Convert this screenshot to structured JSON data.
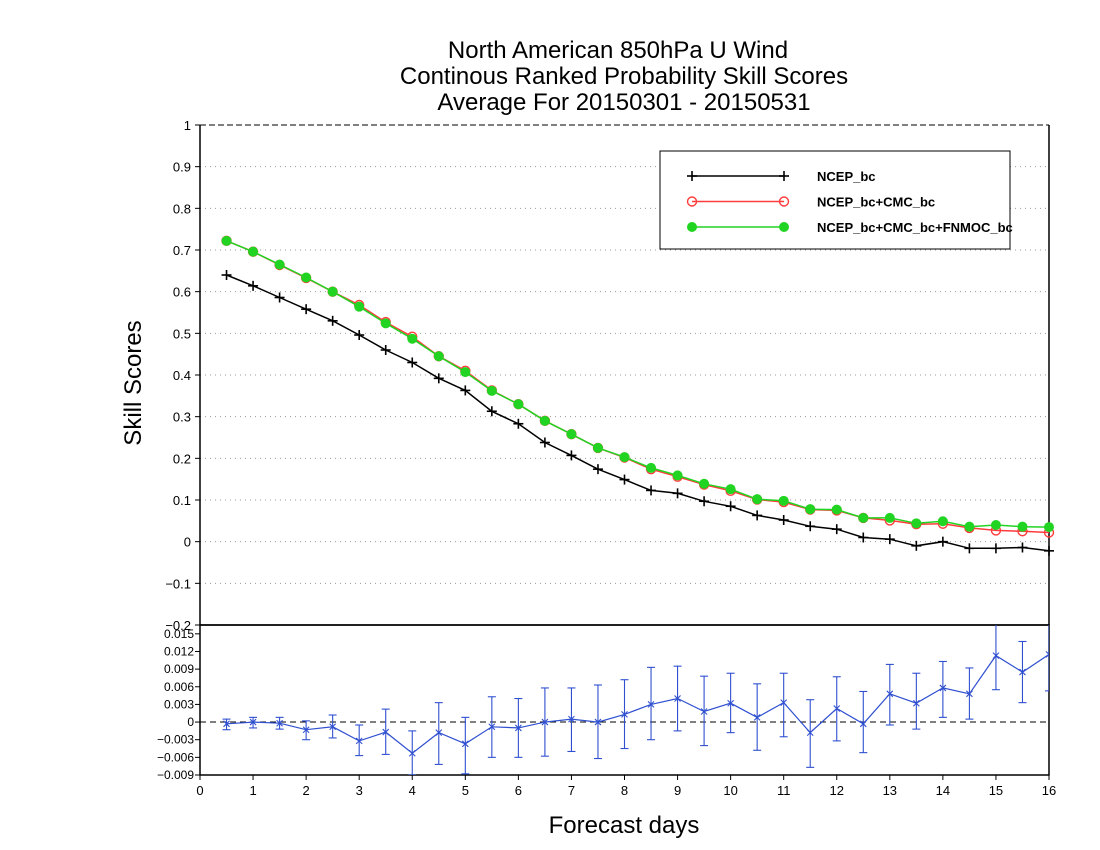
{
  "chart_data": [
    {
      "type": "line",
      "title": [
        "North American 850hPa U Wind",
        "Continous Ranked Probability Skill Scores",
        "Average For 20150301 - 20150531"
      ],
      "ylabel": "Skill Scores",
      "xlim": [
        0,
        16
      ],
      "ylim": [
        -0.2,
        1
      ],
      "y_ticks": [
        "1",
        "0.9",
        "0.8",
        "0.7",
        "0.6",
        "0.5",
        "0.4",
        "0.3",
        "0.2",
        "0.1",
        "0",
        "−0.1",
        "−0.2"
      ],
      "grid": true,
      "legend_position": "top-right",
      "x": [
        0.5,
        1,
        1.5,
        2,
        2.5,
        3,
        3.5,
        4,
        4.5,
        5,
        5.5,
        6,
        6.5,
        7,
        7.5,
        8,
        8.5,
        9,
        9.5,
        10,
        10.5,
        11,
        11.5,
        12,
        12.5,
        13,
        13.5,
        14,
        14.5,
        15,
        15.5,
        16
      ],
      "series": [
        {
          "name": "NCEP_bc",
          "color": "#000000",
          "marker": "plus",
          "values": [
            0.64,
            0.614,
            0.586,
            0.558,
            0.53,
            0.496,
            0.46,
            0.43,
            0.392,
            0.363,
            0.313,
            0.283,
            0.238,
            0.207,
            0.174,
            0.149,
            0.123,
            0.116,
            0.097,
            0.085,
            0.063,
            0.052,
            0.037,
            0.03,
            0.01,
            0.006,
            -0.01,
            0.0,
            -0.016,
            -0.016,
            -0.014,
            -0.022
          ]
        },
        {
          "name": "NCEP_bc+CMC_bc",
          "color": "#ff3b3b",
          "marker": "open-circle",
          "values": [
            0.722,
            0.696,
            0.664,
            0.633,
            0.6,
            0.568,
            0.527,
            0.492,
            0.445,
            0.41,
            0.363,
            0.33,
            0.29,
            0.258,
            0.225,
            0.202,
            0.174,
            0.156,
            0.137,
            0.122,
            0.101,
            0.095,
            0.077,
            0.075,
            0.057,
            0.051,
            0.042,
            0.043,
            0.033,
            0.027,
            0.025,
            0.022
          ]
        },
        {
          "name": "NCEP_bc+CMC_bc+FNMOC_bc",
          "color": "#22d422",
          "marker": "filled-circle",
          "values": [
            0.722,
            0.696,
            0.665,
            0.634,
            0.6,
            0.564,
            0.524,
            0.487,
            0.445,
            0.407,
            0.362,
            0.33,
            0.29,
            0.258,
            0.225,
            0.203,
            0.177,
            0.159,
            0.139,
            0.126,
            0.102,
            0.098,
            0.078,
            0.077,
            0.057,
            0.057,
            0.044,
            0.049,
            0.036,
            0.04,
            0.036,
            0.035
          ]
        }
      ]
    },
    {
      "type": "line",
      "xlabel": "Forecast days",
      "xlim": [
        0,
        16
      ],
      "ylim": [
        -0.009,
        0.0165
      ],
      "x_ticks": [
        "0",
        "1",
        "2",
        "3",
        "4",
        "5",
        "6",
        "7",
        "8",
        "9",
        "10",
        "11",
        "12",
        "13",
        "14",
        "15",
        "16"
      ],
      "y_ticks": [
        "0.015",
        "0.012",
        "0.009",
        "0.006",
        "0.003",
        "0",
        "−0.003",
        "−0.006",
        "−0.009"
      ],
      "reference_line": 0,
      "series": [
        {
          "color": "#3050d0",
          "marker": "cross",
          "error_bars": true,
          "x": [
            0.5,
            1,
            1.5,
            2,
            2.5,
            3,
            3.5,
            4,
            4.5,
            5,
            5.5,
            6,
            6.5,
            7,
            7.5,
            8,
            8.5,
            9,
            9.5,
            10,
            10.5,
            11,
            11.5,
            12,
            12.5,
            13,
            13.5,
            14,
            14.5,
            15,
            15.5,
            16
          ],
          "values": [
            -0.0003,
            0.0,
            -0.0002,
            -0.0013,
            -0.0008,
            -0.0032,
            -0.0017,
            -0.0053,
            -0.0018,
            -0.0037,
            -0.0008,
            -0.001,
            0.0,
            0.0005,
            0.0,
            0.0013,
            0.003,
            0.004,
            0.0018,
            0.0032,
            0.0008,
            0.0033,
            -0.0018,
            0.0023,
            -0.0003,
            0.0048,
            0.0032,
            0.0058,
            0.0048,
            0.0113,
            0.0085,
            0.0115
          ],
          "lower": [
            -0.0013,
            -0.001,
            -0.0012,
            -0.003,
            -0.0027,
            -0.0057,
            -0.0055,
            -0.009,
            -0.0072,
            -0.0088,
            -0.006,
            -0.006,
            -0.0058,
            -0.005,
            -0.0062,
            -0.0045,
            -0.003,
            -0.0015,
            -0.004,
            -0.0018,
            -0.0048,
            -0.0025,
            -0.0077,
            -0.0032,
            -0.0052,
            -0.0005,
            -0.0012,
            0.0008,
            0.0005,
            0.0055,
            0.0033,
            0.0053
          ],
          "upper": [
            0.0005,
            0.0008,
            0.0008,
            0.0002,
            0.0012,
            -0.0005,
            0.0022,
            -0.0015,
            0.0033,
            0.0008,
            0.0043,
            0.004,
            0.0058,
            0.0058,
            0.0063,
            0.0072,
            0.0093,
            0.0095,
            0.0078,
            0.0083,
            0.0065,
            0.0083,
            0.0038,
            0.0077,
            0.0052,
            0.0098,
            0.0083,
            0.0103,
            0.0092,
            0.0168,
            0.0137,
            0.0168
          ]
        }
      ]
    }
  ]
}
